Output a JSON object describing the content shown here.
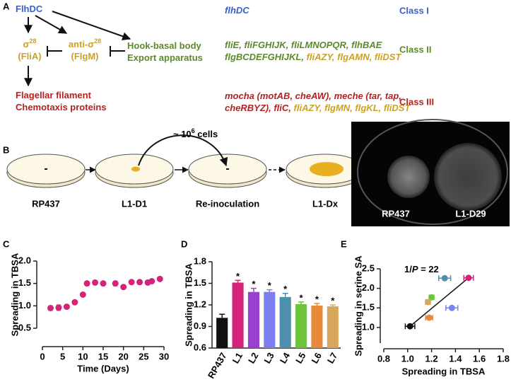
{
  "panel_a": {
    "label": "A",
    "nodes": [
      {
        "color": "#3a5fc8",
        "lines": [
          [
            {
              "text": "FlhDC"
            }
          ]
        ]
      },
      {
        "color": "#c9a227",
        "lines": [
          [
            {
              "text": "σ"
            },
            {
              "text": "28",
              "sup": true
            }
          ],
          [
            {
              "text": "(FliA)"
            }
          ]
        ]
      },
      {
        "color": "#c9a227",
        "lines": [
          [
            {
              "text": "anti-σ"
            },
            {
              "text": "28",
              "sup": true
            }
          ],
          [
            {
              "text": "(FlgM)"
            }
          ]
        ]
      },
      {
        "color": "#5a8a2a",
        "lines": [
          [
            {
              "text": "Hook-basal body"
            }
          ],
          [
            {
              "text": "Export apparatus"
            }
          ]
        ]
      },
      {
        "color": "#b22222",
        "lines": [
          [
            {
              "text": "Flagellar filament"
            }
          ],
          [
            {
              "text": "Chemotaxis proteins"
            }
          ]
        ]
      }
    ],
    "genes": [
      [
        [
          {
            "text": "flhDC",
            "color": "#3a5fc8"
          }
        ]
      ],
      [
        [
          {
            "text": "fliE, fliFGHIJK, fliLMNOPQR, flhBAE",
            "color": "#5a8a2a"
          }
        ],
        [
          {
            "text": "flgBCDEFGHIJKL, ",
            "color": "#5a8a2a"
          },
          {
            "text": "fliAZY, flgAMN, fliDST",
            "color": "#c9a227"
          }
        ]
      ],
      [
        [
          {
            "text": "mocha (motAB, cheAW), meche (tar, tap,",
            "color": "#b22222"
          }
        ],
        [
          {
            "text": "cheRBYZ), fliC, ",
            "color": "#b22222"
          },
          {
            "text": "fliAZY, flgMN, flgKL, fliDST",
            "color": "#c9a227"
          }
        ]
      ]
    ],
    "classes": [
      {
        "text": "Class I",
        "color": "#3a5fc8"
      },
      {
        "text": "Class II",
        "color": "#5a8a2a"
      },
      {
        "text": "Class III",
        "color": "#b22222"
      }
    ]
  },
  "panel_b": {
    "label": "B",
    "dishes": [
      "RP437",
      "L1-D1",
      "Re-inoculation",
      "L1-Dx"
    ],
    "transfer": [
      {
        "text": "~ 10"
      },
      {
        "text": "6",
        "sup": true
      },
      {
        "text": " cells"
      }
    ],
    "photo_labels": [
      "RP437",
      "L1-D29"
    ]
  },
  "chart_data": [
    {
      "panel": "C",
      "type": "scatter",
      "ylabel": "Spreading in TBSA",
      "xlabel": "Time (Days)",
      "x": [
        2,
        4,
        6,
        8,
        10,
        11,
        13,
        15,
        18,
        20,
        22,
        24,
        26,
        27,
        29
      ],
      "values": [
        0.95,
        0.96,
        0.98,
        1.08,
        1.25,
        1.5,
        1.52,
        1.5,
        1.5,
        1.42,
        1.53,
        1.53,
        1.52,
        1.55,
        1.6
      ],
      "errors": [
        0.05,
        0.06,
        0.03,
        0.03,
        0.03,
        0.03,
        0.03,
        0.04,
        0.05,
        0.03,
        0.03,
        0.03,
        0.03,
        0.03,
        0.03
      ],
      "color": "#d4237a",
      "xlim": [
        0,
        30
      ],
      "xticks": [
        0,
        5,
        10,
        15,
        20,
        25,
        30
      ],
      "ylim": [
        0.5,
        2.0
      ],
      "yticks": [
        0.5,
        {
          "value": 1,
          "label": "1.0"
        },
        1.5,
        {
          "value": 2,
          "label": "2.0"
        }
      ]
    },
    {
      "panel": "D",
      "type": "bar",
      "ylabel": "Spreading in TBSA",
      "categories": [
        "RP437",
        "L1",
        "L2",
        "L3",
        "L4",
        "L5",
        "L6",
        "L7"
      ],
      "values": [
        1.02,
        1.51,
        1.38,
        1.38,
        1.31,
        1.21,
        1.19,
        1.18
      ],
      "errors": [
        0.05,
        0.03,
        0.05,
        0.03,
        0.05,
        0.03,
        0.03,
        0.02
      ],
      "colors": [
        "#111111",
        "#d4237a",
        "#9b3fcf",
        "#7b7ff0",
        "#4f8fae",
        "#6cc43a",
        "#e8883a",
        "#d9a65e"
      ],
      "annotations": [
        null,
        "*",
        "*",
        "*",
        "*",
        "*",
        "*",
        "*"
      ],
      "ylim": [
        0.6,
        1.8
      ],
      "yticks": [
        0.6,
        0.9,
        1.2,
        1.5,
        1.8
      ]
    },
    {
      "panel": "E",
      "type": "scatter",
      "ylabel": "Spreading in serine SA",
      "xlabel": "Spreading in TBSA",
      "x": [
        1.02,
        1.51,
        1.31,
        1.2,
        1.17,
        1.18,
        1.37
      ],
      "values": [
        1.03,
        2.27,
        2.26,
        1.77,
        1.65,
        1.25,
        1.5
      ],
      "x_errors": [
        0.04,
        0.04,
        0.05,
        0.02,
        0.02,
        0.03,
        0.05
      ],
      "colors": [
        "#111111",
        "#d4237a",
        "#4f8fae",
        "#6cc43a",
        "#d9a65e",
        "#e8883a",
        "#7b7ff0"
      ],
      "trendline": {
        "x": [
          1.02,
          1.51
        ],
        "values": [
          1.03,
          2.27
        ]
      },
      "annotation": [
        {
          "text": "1/"
        },
        {
          "text": "P",
          "italic": true
        },
        {
          "text": " = 22"
        }
      ],
      "xlim": [
        0.8,
        1.8
      ],
      "xticks": [
        0.8,
        {
          "value": 1,
          "label": "1.0"
        },
        1.2,
        1.4,
        1.6,
        1.8
      ],
      "ylim": [
        0.6,
        2.5
      ],
      "yticks": [
        {
          "value": 1,
          "label": "1.0"
        },
        1.5,
        {
          "value": 2,
          "label": "2.0"
        },
        2.5
      ]
    }
  ]
}
